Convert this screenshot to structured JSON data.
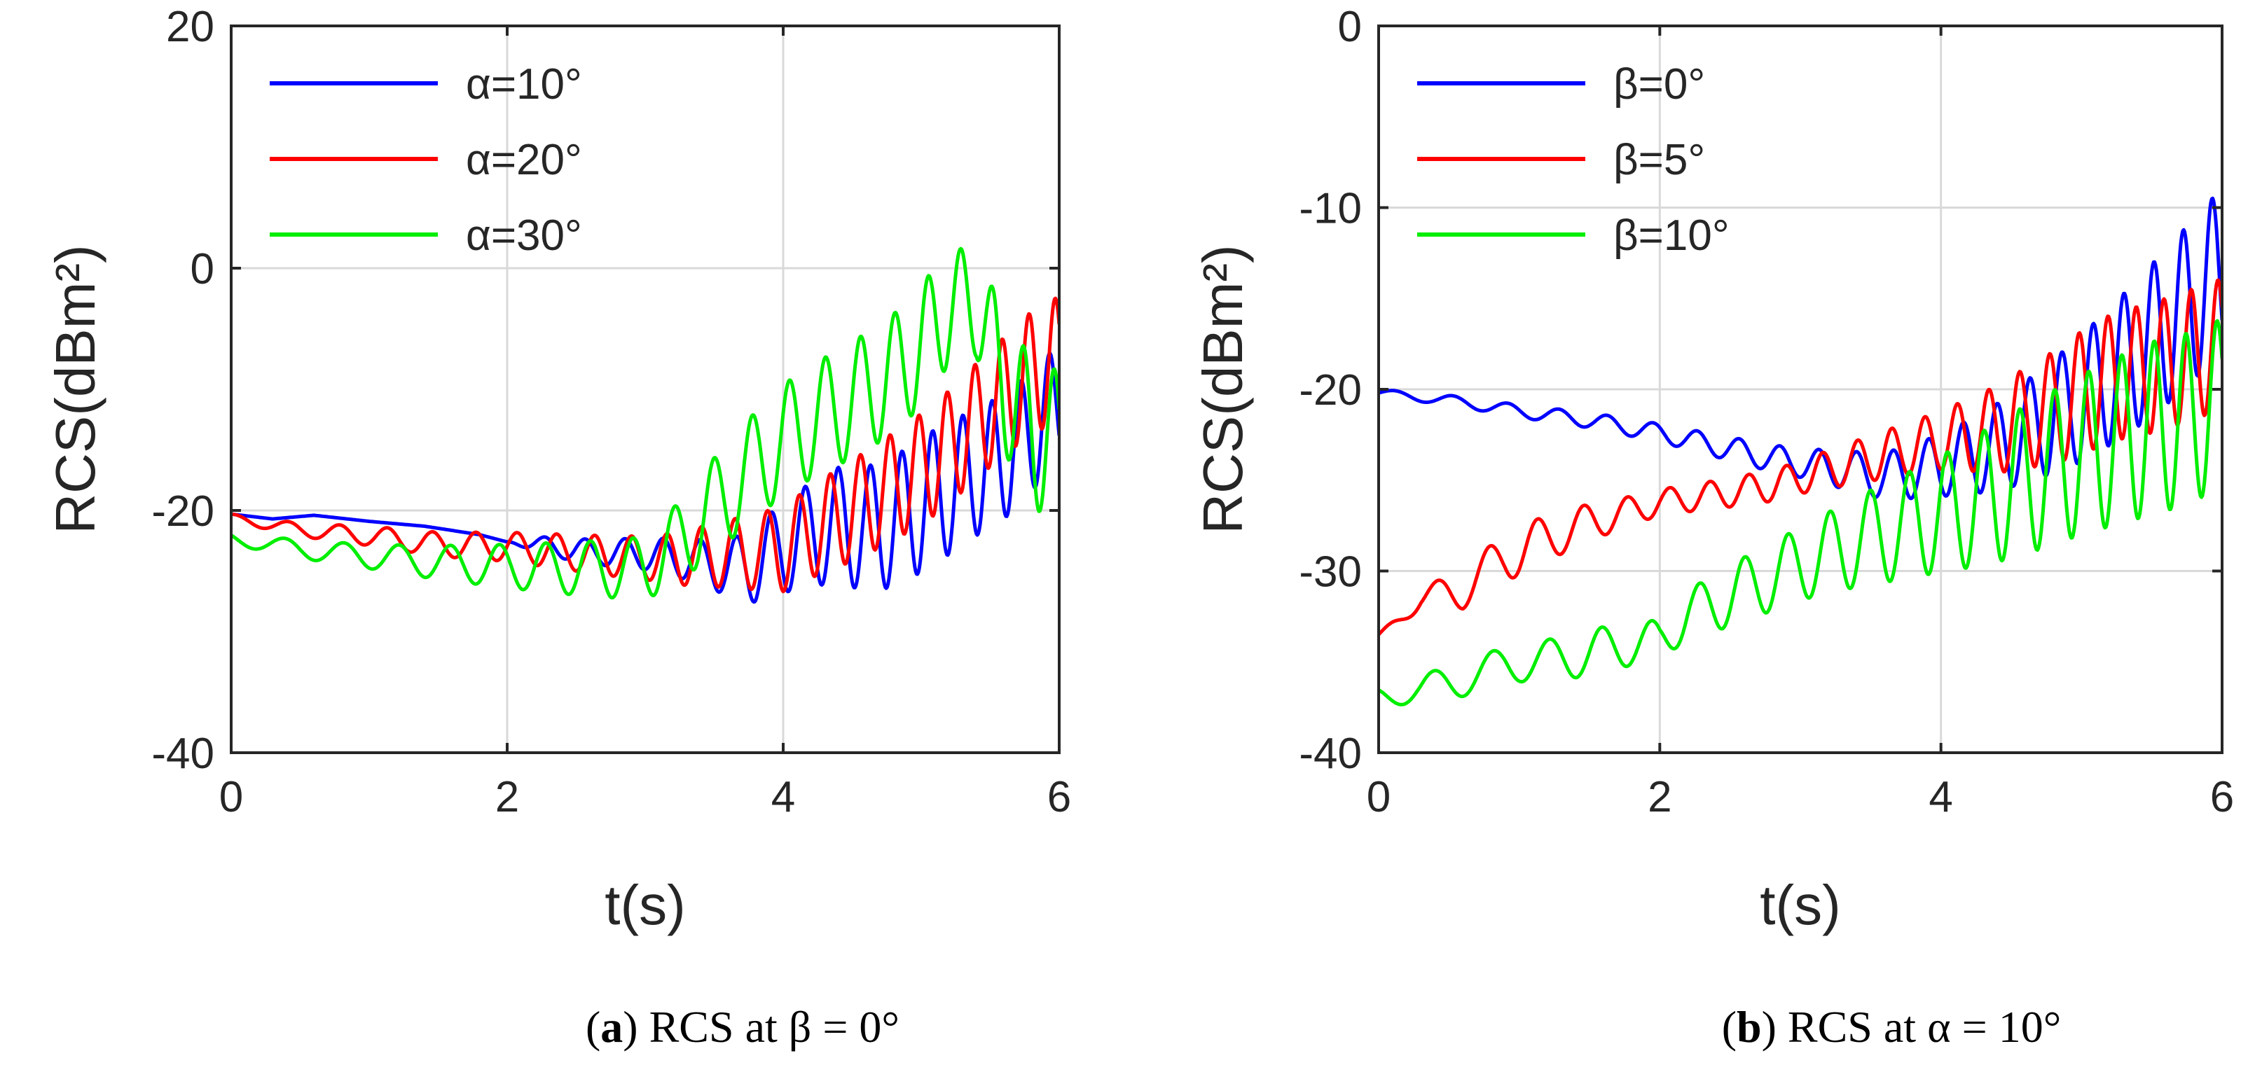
{
  "chart_data": [
    {
      "type": "line",
      "caption": {
        "letter": "a",
        "rest": " RCS at β = 0°"
      },
      "xlabel": "t(s)",
      "ylabel": "RCS(dBm²)",
      "xlim": [
        0,
        6
      ],
      "ylim": [
        -40,
        20
      ],
      "xticks": [
        0,
        2,
        4,
        6
      ],
      "yticks": [
        -40,
        -20,
        0,
        20
      ],
      "grid": true,
      "legend_position": "top-left",
      "series": [
        {
          "name": "α=10°",
          "color": "#0000ff",
          "points": [
            [
              0,
              -20.3
            ],
            [
              0.3,
              -20.7
            ],
            [
              0.6,
              -20.4
            ],
            [
              1.0,
              -20.9
            ],
            [
              1.4,
              -21.3
            ],
            [
              1.8,
              -22.0
            ],
            [
              2.0,
              -22.6
            ],
            [
              2.2,
              -22.8
            ],
            [
              2.6,
              -23.4
            ],
            [
              3.0,
              -23.6
            ],
            [
              3.3,
              -24.0
            ],
            [
              3.6,
              -24.8
            ],
            [
              3.8,
              -24.5
            ],
            [
              4.0,
              -23.0
            ],
            [
              4.2,
              -22.0
            ],
            [
              4.4,
              -21.2
            ],
            [
              4.6,
              -21.5
            ],
            [
              4.8,
              -21.0
            ],
            [
              5.0,
              -19.5
            ],
            [
              5.2,
              -18.2
            ],
            [
              5.4,
              -16.8
            ],
            [
              5.6,
              -15.6
            ],
            [
              5.8,
              -13.5
            ],
            [
              6.0,
              -11.0
            ]
          ],
          "osc": [
            [
              2.0,
              0.0
            ],
            [
              2.3,
              0.8
            ],
            [
              3.0,
              1.3
            ],
            [
              3.5,
              2.0
            ],
            [
              4.0,
              3.8
            ],
            [
              4.5,
              5.0
            ],
            [
              5.0,
              5.6
            ],
            [
              5.5,
              5.2
            ],
            [
              6.0,
              4.8
            ]
          ]
        },
        {
          "name": "α=20°",
          "color": "#ff0000",
          "points": [
            [
              0,
              -20.6
            ],
            [
              0.5,
              -21.6
            ],
            [
              1.0,
              -22.1
            ],
            [
              1.5,
              -22.8
            ],
            [
              2.0,
              -23.0
            ],
            [
              2.4,
              -23.4
            ],
            [
              2.8,
              -23.8
            ],
            [
              3.2,
              -24.0
            ],
            [
              3.6,
              -23.6
            ],
            [
              4.0,
              -23.2
            ],
            [
              4.2,
              -21.8
            ],
            [
              4.4,
              -20.6
            ],
            [
              4.6,
              -19.4
            ],
            [
              4.8,
              -18.0
            ],
            [
              5.0,
              -16.6
            ],
            [
              5.2,
              -14.8
            ],
            [
              5.4,
              -12.6
            ],
            [
              5.6,
              -10.6
            ],
            [
              5.8,
              -8.6
            ],
            [
              6.0,
              -7.5
            ]
          ],
          "osc": [
            [
              0,
              0.3
            ],
            [
              1.0,
              0.8
            ],
            [
              2.0,
              1.2
            ],
            [
              3.0,
              1.8
            ],
            [
              3.5,
              2.6
            ],
            [
              4.0,
              3.5
            ],
            [
              4.5,
              4.2
            ],
            [
              5.0,
              4.6
            ],
            [
              5.5,
              4.8
            ],
            [
              6.0,
              5.2
            ]
          ]
        },
        {
          "name": "α=30°",
          "color": "#00ee00",
          "points": [
            [
              0,
              -22.3
            ],
            [
              0.5,
              -23.2
            ],
            [
              1.0,
              -23.8
            ],
            [
              1.5,
              -24.3
            ],
            [
              2.0,
              -24.6
            ],
            [
              2.5,
              -24.8
            ],
            [
              3.0,
              -24.8
            ],
            [
              3.2,
              -23.0
            ],
            [
              3.4,
              -20.8
            ],
            [
              3.6,
              -18.5
            ],
            [
              3.8,
              -16.2
            ],
            [
              4.0,
              -14.2
            ],
            [
              4.2,
              -12.7
            ],
            [
              4.4,
              -11.5
            ],
            [
              4.6,
              -10.2
            ],
            [
              4.8,
              -8.7
            ],
            [
              5.0,
              -6.4
            ],
            [
              5.2,
              -3.2
            ],
            [
              5.4,
              -2.8
            ],
            [
              5.6,
              -9.5
            ],
            [
              5.8,
              -13.5
            ],
            [
              6.0,
              -15.0
            ]
          ],
          "osc": [
            [
              0,
              0.5
            ],
            [
              1.0,
              1.0
            ],
            [
              2.0,
              1.8
            ],
            [
              3.0,
              2.6
            ],
            [
              3.5,
              4.0
            ],
            [
              4.0,
              4.6
            ],
            [
              4.5,
              4.8
            ],
            [
              5.0,
              5.0
            ],
            [
              5.4,
              4.5
            ],
            [
              5.6,
              5.6
            ],
            [
              6.0,
              6.5
            ]
          ]
        }
      ]
    },
    {
      "type": "line",
      "caption": {
        "letter": "b",
        "rest": " RCS at α = 10°"
      },
      "xlabel": "t(s)",
      "ylabel": "RCS(dBm²)",
      "xlim": [
        0,
        6
      ],
      "ylim": [
        -40,
        0
      ],
      "xticks": [
        0,
        2,
        4,
        6
      ],
      "yticks": [
        -40,
        -30,
        -20,
        -10,
        0
      ],
      "grid": true,
      "legend_position": "top-left",
      "series": [
        {
          "name": "β=0°",
          "color": "#0000ff",
          "points": [
            [
              0,
              -20.2
            ],
            [
              0.5,
              -20.6
            ],
            [
              1.0,
              -21.2
            ],
            [
              1.5,
              -21.7
            ],
            [
              2.0,
              -22.4
            ],
            [
              2.4,
              -23.1
            ],
            [
              2.8,
              -23.8
            ],
            [
              3.2,
              -24.3
            ],
            [
              3.6,
              -24.8
            ],
            [
              4.0,
              -24.2
            ],
            [
              4.4,
              -23.2
            ],
            [
              4.8,
              -21.5
            ],
            [
              5.0,
              -20.5
            ],
            [
              5.2,
              -19.3
            ],
            [
              5.4,
              -18.0
            ],
            [
              5.6,
              -16.6
            ],
            [
              5.8,
              -15.0
            ],
            [
              6.0,
              -13.5
            ]
          ],
          "osc": [
            [
              0,
              0.2
            ],
            [
              2.0,
              0.5
            ],
            [
              3.0,
              0.8
            ],
            [
              3.5,
              1.2
            ],
            [
              4.0,
              1.7
            ],
            [
              4.5,
              2.6
            ],
            [
              5.0,
              3.5
            ],
            [
              5.5,
              4.2
            ],
            [
              6.0,
              4.6
            ]
          ]
        },
        {
          "name": "β=5°",
          "color": "#ff0000",
          "points": [
            [
              0,
              -33.5
            ],
            [
              0.3,
              -31.6
            ],
            [
              0.6,
              -31.0
            ],
            [
              0.9,
              -29.2
            ],
            [
              1.2,
              -28.2
            ],
            [
              1.5,
              -27.3
            ],
            [
              1.8,
              -26.7
            ],
            [
              2.0,
              -26.2
            ],
            [
              2.4,
              -25.8
            ],
            [
              2.8,
              -25.3
            ],
            [
              3.2,
              -24.4
            ],
            [
              3.6,
              -23.6
            ],
            [
              4.0,
              -22.8
            ],
            [
              4.4,
              -22.2
            ],
            [
              4.8,
              -21.0
            ],
            [
              5.2,
              -19.4
            ],
            [
              5.6,
              -18.6
            ],
            [
              6.0,
              -17.5
            ]
          ],
          "osc": [
            [
              0,
              0.0
            ],
            [
              0.5,
              1.0
            ],
            [
              1.0,
              1.4
            ],
            [
              1.5,
              1.0
            ],
            [
              2.0,
              0.7
            ],
            [
              3.0,
              0.9
            ],
            [
              4.0,
              1.6
            ],
            [
              4.5,
              2.6
            ],
            [
              5.0,
              3.4
            ],
            [
              5.5,
              3.6
            ],
            [
              6.0,
              3.6
            ]
          ]
        },
        {
          "name": "β=10°",
          "color": "#00ee00",
          "points": [
            [
              0,
              -36.8
            ],
            [
              0.3,
              -36.6
            ],
            [
              0.6,
              -35.9
            ],
            [
              0.9,
              -35.2
            ],
            [
              1.2,
              -34.9
            ],
            [
              1.5,
              -34.5
            ],
            [
              1.8,
              -34.0
            ],
            [
              2.0,
              -33.8
            ],
            [
              2.2,
              -32.4
            ],
            [
              2.6,
              -31.0
            ],
            [
              3.0,
              -29.6
            ],
            [
              3.4,
              -28.4
            ],
            [
              3.8,
              -27.4
            ],
            [
              4.2,
              -26.3
            ],
            [
              4.6,
              -25.0
            ],
            [
              5.0,
              -23.6
            ],
            [
              5.4,
              -22.4
            ],
            [
              5.8,
              -21.5
            ],
            [
              6.0,
              -20.7
            ]
          ],
          "osc": [
            [
              0,
              0.5
            ],
            [
              0.5,
              1.0
            ],
            [
              1.0,
              1.0
            ],
            [
              1.5,
              1.3
            ],
            [
              2.0,
              1.1
            ],
            [
              2.5,
              1.7
            ],
            [
              3.0,
              2.0
            ],
            [
              3.5,
              2.6
            ],
            [
              4.0,
              3.2
            ],
            [
              4.5,
              4.0
            ],
            [
              5.0,
              4.4
            ],
            [
              5.5,
              4.8
            ],
            [
              6.0,
              4.6
            ]
          ]
        }
      ]
    }
  ]
}
